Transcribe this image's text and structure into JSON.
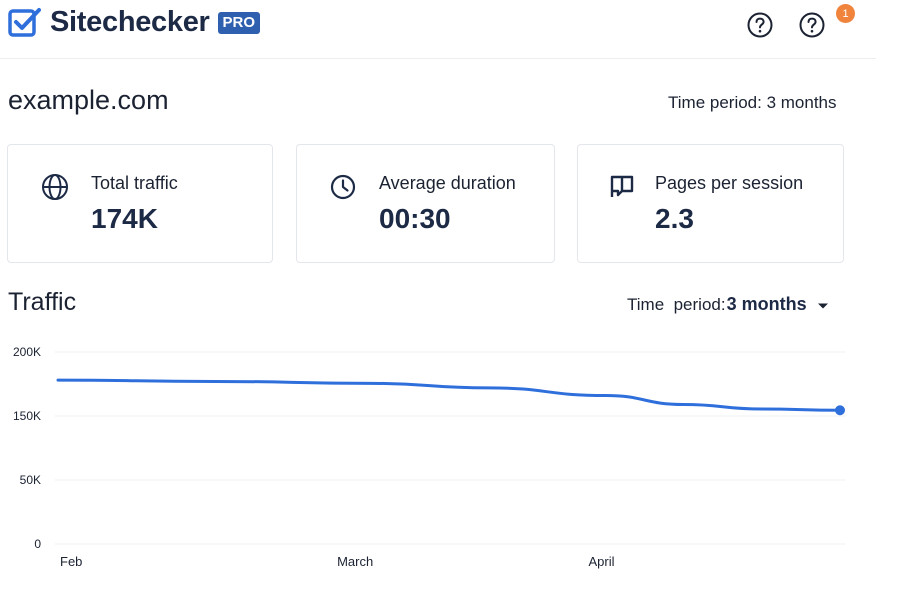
{
  "app": {
    "logo_text": "Sitechecker",
    "pro_badge": "PRO",
    "notification_count": "1",
    "icons": [
      "checkbox-logo-icon",
      "help-icon",
      "help-icon"
    ]
  },
  "domain": "example.com",
  "time_period_top": "Time period: 3 months",
  "metrics": [
    {
      "icon": "globe-icon",
      "label": "Total traffic",
      "value": "174K"
    },
    {
      "icon": "clock-icon",
      "label": "Average duration",
      "value": "00:30"
    },
    {
      "icon": "flag-icon",
      "label": "Pages per session",
      "value": "2.3"
    }
  ],
  "traffic": {
    "title": "Traffic",
    "period_label": "Time  period:",
    "period_value": "3 months"
  },
  "colors": {
    "accent": "#2f6fdc",
    "brand": "#2f60b0",
    "badge": "#f0843d",
    "text_dark": "#1d2a45"
  },
  "chart_data": {
    "type": "line",
    "y_ticks": [
      {
        "label": "200K",
        "value": 200000
      },
      {
        "label": "150K",
        "value": 150000
      },
      {
        "label": "50K",
        "value": 50000
      },
      {
        "label": "0",
        "value": 0
      }
    ],
    "x_ticks": [
      {
        "label": "Feb",
        "value": 0
      },
      {
        "label": "March",
        "value": 38
      },
      {
        "label": "April",
        "value": 69.5
      }
    ],
    "xlim": [
      0,
      100
    ],
    "series": [
      {
        "color": "#2f6fdc",
        "points": [
          [
            0,
            178000
          ],
          [
            20,
            177000
          ],
          [
            40,
            175500
          ],
          [
            55,
            172000
          ],
          [
            70,
            166000
          ],
          [
            80,
            159000
          ],
          [
            90,
            155500
          ],
          [
            100,
            154500
          ]
        ]
      }
    ],
    "grid": true
  }
}
